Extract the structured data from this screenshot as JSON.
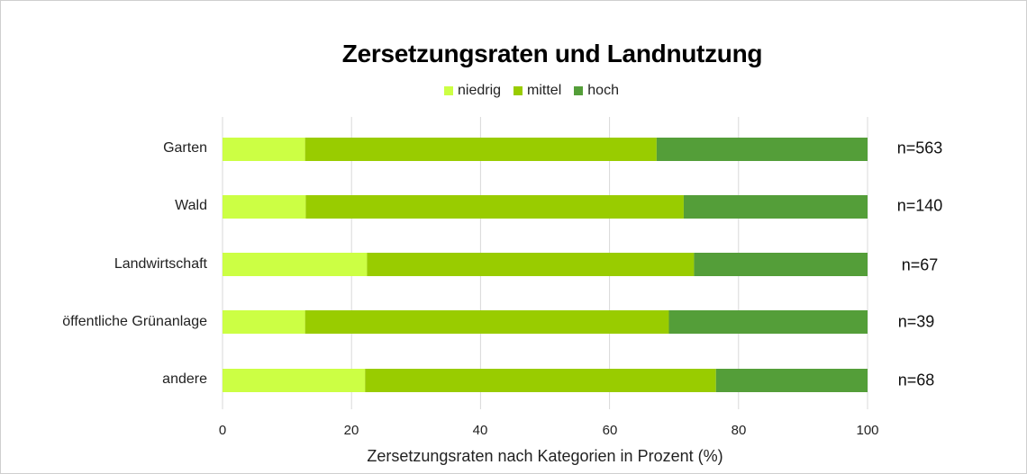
{
  "chart_data": {
    "type": "bar",
    "orientation": "horizontal",
    "stacked": true,
    "title": "Zersetzungsraten und Landnutzung",
    "xlabel": "Zersetzungsraten nach Kategorien in Prozent (%)",
    "ylabel": "",
    "xlim": [
      0,
      100
    ],
    "xticks": [
      "0",
      "20",
      "40",
      "60",
      "80",
      "100"
    ],
    "grid": true,
    "legend_position": "top",
    "categories": [
      "Garten",
      "Wald",
      "Landwirtschaft",
      "öffentliche Grünanlage",
      "andere"
    ],
    "series": [
      {
        "name": "niedrig",
        "color": "#ccff44",
        "values": [
          12.8,
          12.9,
          22.4,
          12.8,
          22.1
        ]
      },
      {
        "name": "mittel",
        "color": "#99cc00",
        "values": [
          54.5,
          58.6,
          50.7,
          56.4,
          54.4
        ]
      },
      {
        "name": "hoch",
        "color": "#549e39",
        "values": [
          32.7,
          28.5,
          26.9,
          30.8,
          23.5
        ]
      }
    ],
    "annotations": [
      "n=563",
      "n=140",
      "n=67",
      "n=39",
      "n=68"
    ]
  }
}
